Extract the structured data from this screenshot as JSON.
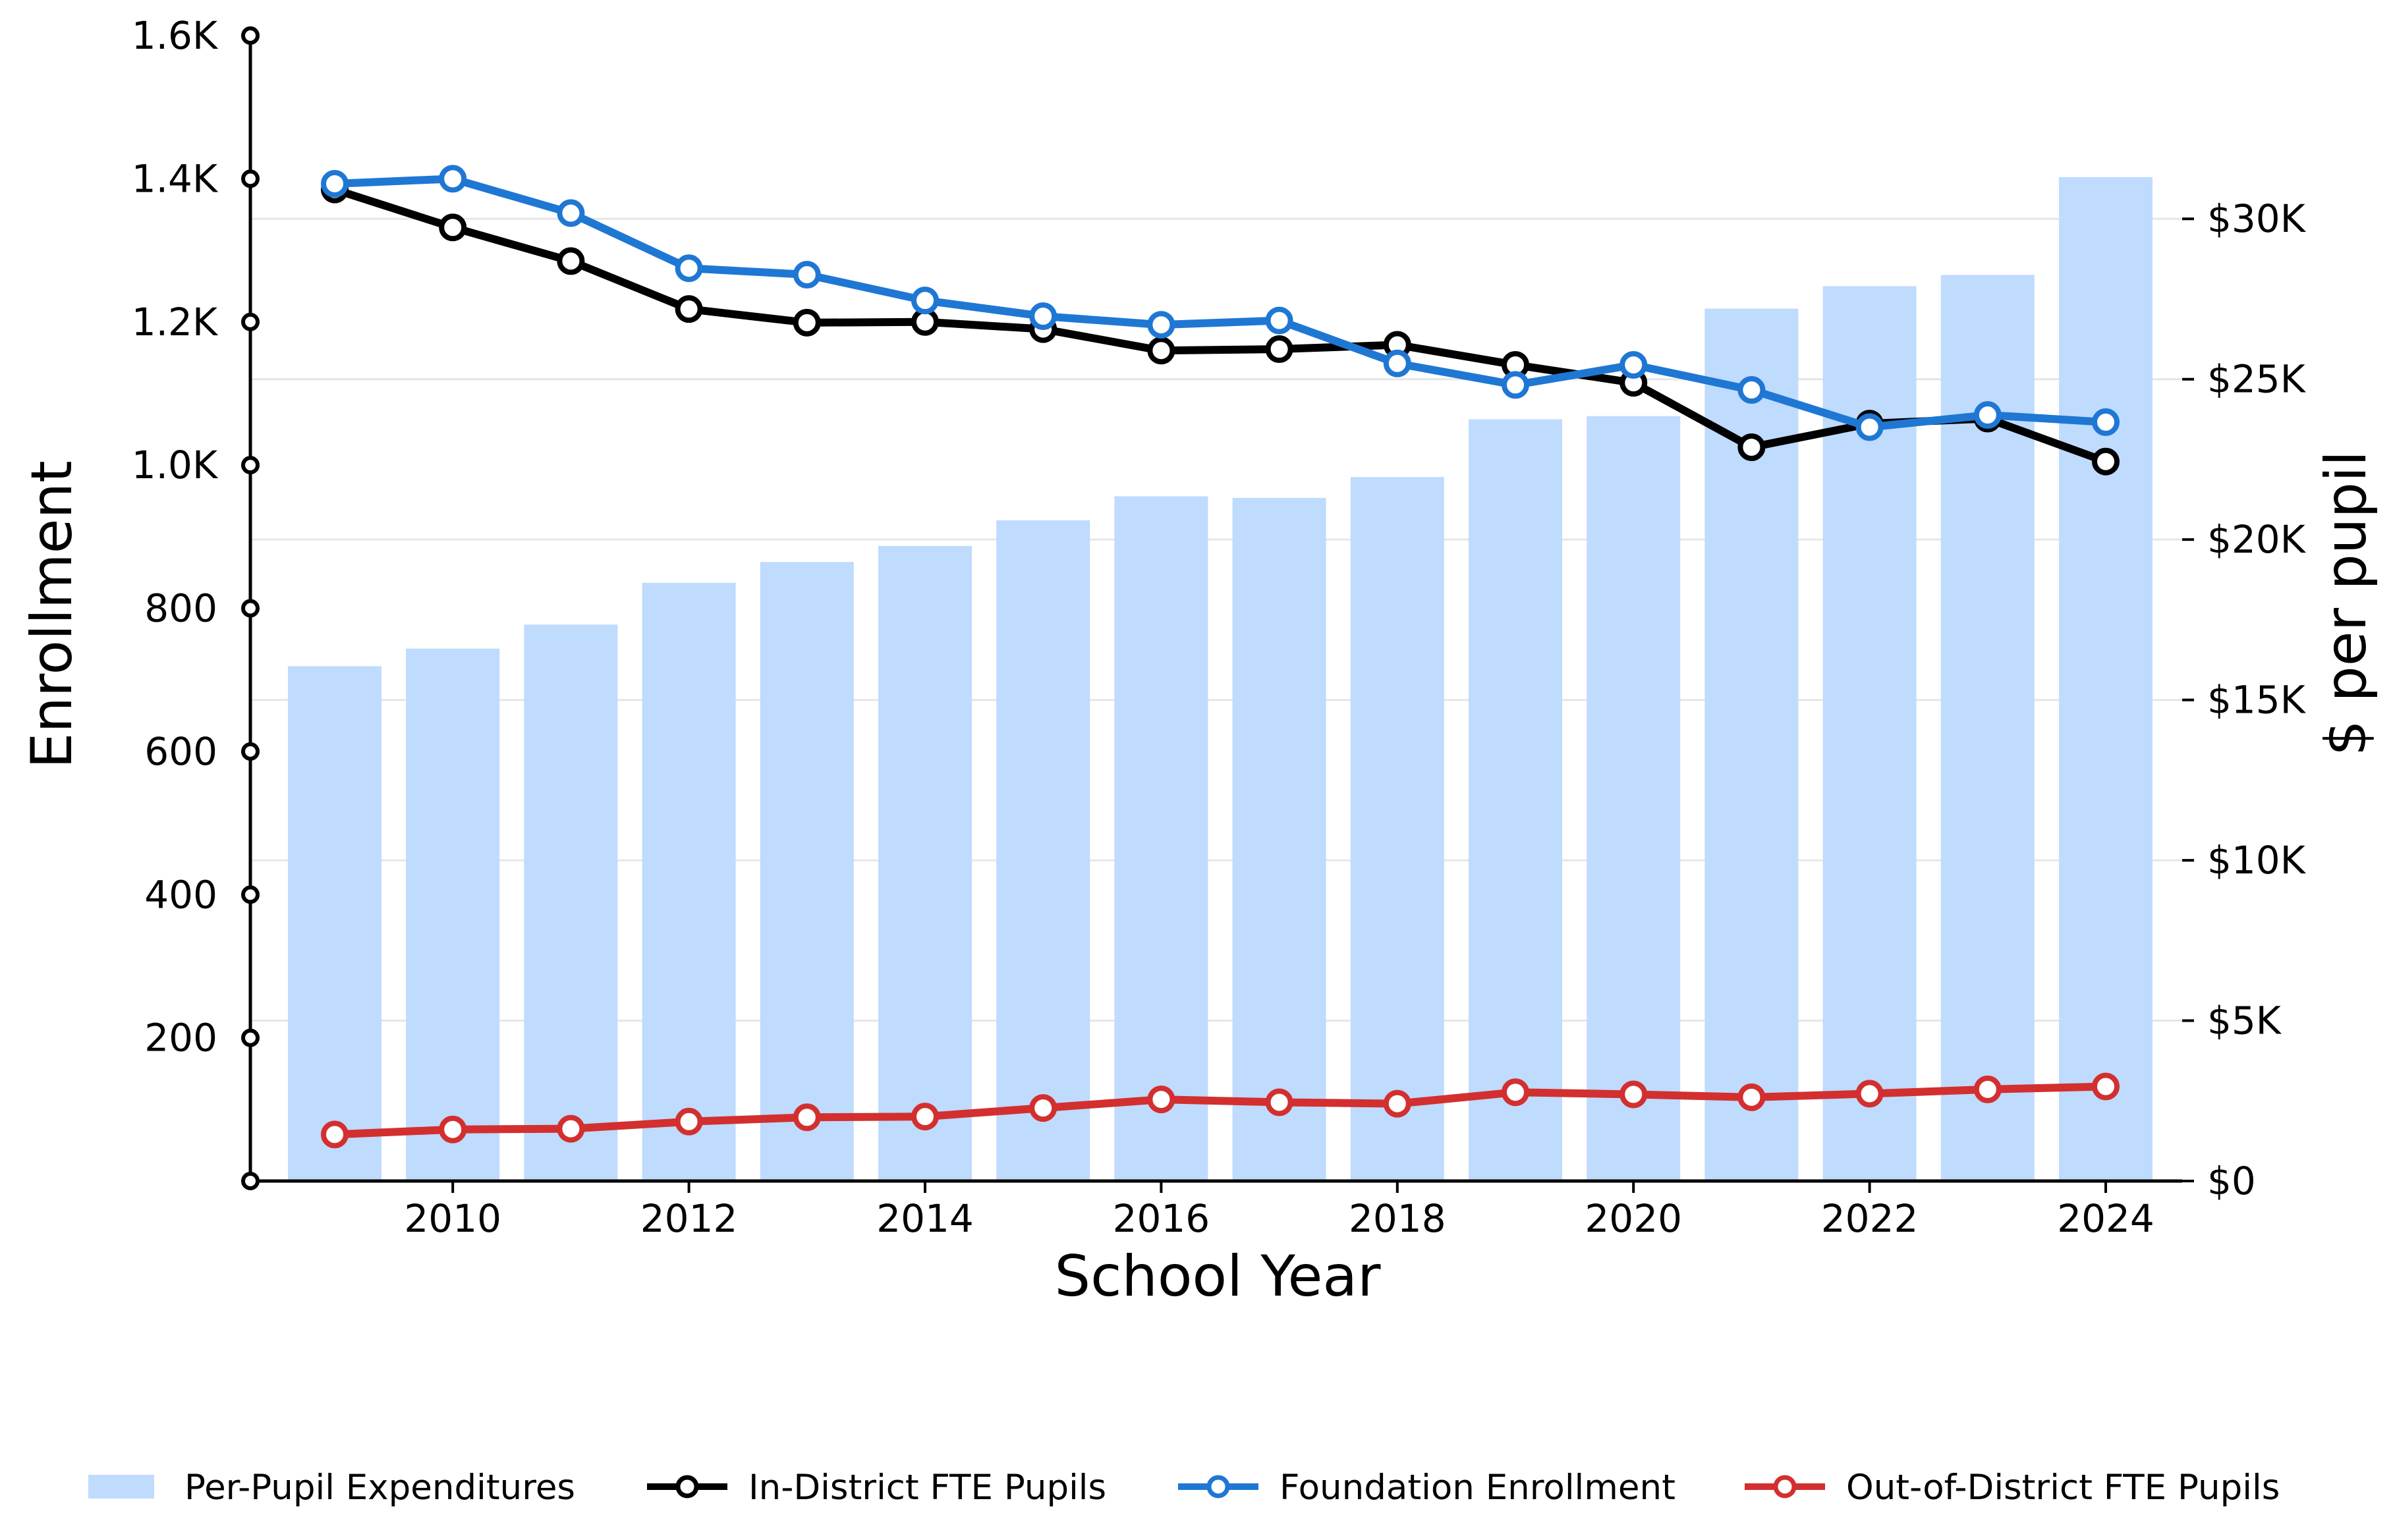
{
  "chart_data": {
    "type": "bar+line",
    "x_title": "School Year",
    "y_left_title": "Enrollment",
    "y_right_title": "$ per pupil",
    "years": [
      2009,
      2010,
      2011,
      2012,
      2013,
      2014,
      2015,
      2016,
      2017,
      2018,
      2019,
      2020,
      2021,
      2022,
      2023,
      2024
    ],
    "x_ticks": [
      "2010",
      "2012",
      "2014",
      "2016",
      "2018",
      "2020",
      "2022",
      "2024"
    ],
    "y_left_ticks": [
      {
        "value": 0,
        "label": ""
      },
      {
        "value": 200,
        "label": "200"
      },
      {
        "value": 400,
        "label": "400"
      },
      {
        "value": 600,
        "label": "600"
      },
      {
        "value": 800,
        "label": "800"
      },
      {
        "value": 1000,
        "label": "1.0K"
      },
      {
        "value": 1200,
        "label": "1.2K"
      },
      {
        "value": 1400,
        "label": "1.4K"
      },
      {
        "value": 1600,
        "label": "1.6K"
      }
    ],
    "y_right_ticks": [
      {
        "value": 0,
        "label": "$0"
      },
      {
        "value": 5000,
        "label": "$5K"
      },
      {
        "value": 10000,
        "label": "$10K"
      },
      {
        "value": 15000,
        "label": "$15K"
      },
      {
        "value": 20000,
        "label": "$20K"
      },
      {
        "value": 25000,
        "label": "$25K"
      },
      {
        "value": 30000,
        "label": "$30K"
      }
    ],
    "y_left_range": [
      0,
      1600
    ],
    "y_right_range": [
      0,
      35714
    ],
    "gridlines": "horizontal, right axis",
    "legend_position": "bottom",
    "bars": {
      "name": "Per-Pupil Expenditures",
      "axis": "right",
      "color": "#bfdbfe",
      "values": [
        16050,
        16600,
        17350,
        18650,
        19300,
        19800,
        20600,
        21350,
        21300,
        21950,
        23750,
        23850,
        27200,
        27900,
        28250,
        31300
      ]
    },
    "lines": [
      {
        "name": "In-District FTE Pupils",
        "axis": "left",
        "color": "#000000",
        "values": [
          1385,
          1332,
          1285,
          1218,
          1199,
          1200,
          1190,
          1160,
          1162,
          1168,
          1140,
          1115,
          1025,
          1058,
          1065,
          1005
        ]
      },
      {
        "name": "Foundation Enrollment",
        "axis": "left",
        "color": "#1f77d4",
        "values": [
          1393,
          1400,
          1352,
          1275,
          1266,
          1230,
          1208,
          1196,
          1202,
          1142,
          1112,
          1140,
          1105,
          1053,
          1070,
          1060
        ]
      },
      {
        "name": "Out-of-District FTE Pupils",
        "axis": "left",
        "color": "#d32f2f",
        "values": [
          65,
          72,
          73,
          83,
          89,
          90,
          102,
          114,
          110,
          108,
          124,
          121,
          117,
          122,
          128,
          132
        ]
      }
    ]
  }
}
